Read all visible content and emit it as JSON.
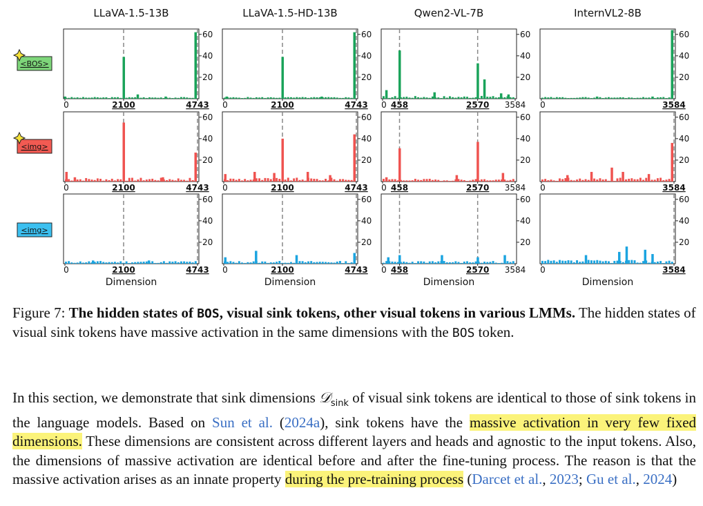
{
  "figure": {
    "models": [
      "LLaVA-1.5-13B",
      "LLaVA-1.5-HD-13B",
      "Qwen2-VL-7B",
      "InternVL2-8B"
    ],
    "row_labels": [
      {
        "text": "<BOS>",
        "color": "#7ed67a",
        "star": true
      },
      {
        "text": "<img>",
        "color": "#f25a52",
        "star": true
      },
      {
        "text": "<img>",
        "color": "#3cc0f0",
        "star": false
      }
    ],
    "xlabel": "Dimension",
    "y_ticks": [
      "20",
      "40",
      "60"
    ],
    "row_colors": [
      "#1aa35a",
      "#ef5350",
      "#1ba4e0"
    ]
  },
  "chart_data": {
    "type": "bar",
    "ylim": [
      0,
      65
    ],
    "models": [
      {
        "name": "LLaVA-1.5-13B",
        "xmax": 4743,
        "x_ticks": [
          {
            "v": 0,
            "label": "0",
            "bold": false
          },
          {
            "v": 2100,
            "label": "2100",
            "bold": true
          },
          {
            "v": 4743,
            "label": "4743",
            "bold": true
          }
        ],
        "sink_dims": [
          2100,
          4743
        ],
        "rows": [
          {
            "spikes": [
              [
                2100,
                39
              ],
              [
                4743,
                62
              ],
              [
                0,
                2
              ],
              [
                2600,
                4
              ],
              [
                3600,
                2
              ]
            ],
            "noise": 1,
            "seed": 3
          },
          {
            "spikes": [
              [
                2100,
                55
              ],
              [
                4743,
                27
              ],
              [
                50,
                9
              ],
              [
                350,
                4
              ],
              [
                3500,
                4
              ]
            ],
            "noise": 3,
            "seed": 7
          },
          {
            "spikes": [
              [
                1000,
                3
              ],
              [
                3000,
                3
              ]
            ],
            "noise": 2,
            "seed": 11
          }
        ]
      },
      {
        "name": "LLaVA-1.5-HD-13B",
        "xmax": 4743,
        "x_ticks": [
          {
            "v": 0,
            "label": "0",
            "bold": false
          },
          {
            "v": 2100,
            "label": "2100",
            "bold": true
          },
          {
            "v": 4743,
            "label": "4743",
            "bold": true
          }
        ],
        "sink_dims": [
          2100,
          4743
        ],
        "rows": [
          {
            "spikes": [
              [
                2100,
                39
              ],
              [
                4743,
                62
              ],
              [
                100,
                2
              ],
              [
                3500,
                2
              ]
            ],
            "noise": 1,
            "seed": 5
          },
          {
            "spikes": [
              [
                2100,
                40
              ],
              [
                4743,
                44
              ],
              [
                50,
                7
              ],
              [
                1100,
                9
              ],
              [
                1800,
                8
              ],
              [
                3000,
                9
              ],
              [
                3800,
                6
              ]
            ],
            "noise": 3,
            "seed": 9
          },
          {
            "spikes": [
              [
                50,
                6
              ],
              [
                1150,
                12
              ],
              [
                2600,
                8
              ],
              [
                4700,
                10
              ]
            ],
            "noise": 2,
            "seed": 13
          }
        ]
      },
      {
        "name": "Qwen2-VL-7B",
        "xmax": 3584,
        "x_ticks": [
          {
            "v": 0,
            "label": "0",
            "bold": false
          },
          {
            "v": 458,
            "label": "458",
            "bold": true
          },
          {
            "v": 2570,
            "label": "2570",
            "bold": true
          },
          {
            "v": 3584,
            "label": "3584",
            "bold": false
          }
        ],
        "sink_dims": [
          458,
          2570
        ],
        "rows": [
          {
            "spikes": [
              [
                458,
                45
              ],
              [
                2570,
                33
              ],
              [
                2750,
                18
              ],
              [
                100,
                8
              ],
              [
                1400,
                6
              ],
              [
                3200,
                5
              ],
              [
                3400,
                4
              ]
            ],
            "noise": 2,
            "seed": 17
          },
          {
            "spikes": [
              [
                458,
                31
              ],
              [
                2570,
                37
              ],
              [
                100,
                4
              ],
              [
                2000,
                6
              ],
              [
                3250,
                8
              ]
            ],
            "noise": 2,
            "seed": 19
          },
          {
            "spikes": [
              [
                458,
                8
              ],
              [
                1600,
                8
              ],
              [
                2570,
                6
              ],
              [
                3300,
                8
              ],
              [
                150,
                6
              ]
            ],
            "noise": 2,
            "seed": 23
          }
        ]
      },
      {
        "name": "InternVL2-8B",
        "xmax": 3584,
        "x_ticks": [
          {
            "v": 0,
            "label": "0",
            "bold": false
          },
          {
            "v": 3584,
            "label": "3584",
            "bold": true
          }
        ],
        "sink_dims": [
          3584
        ],
        "rows": [
          {
            "spikes": [
              [
                3584,
                64
              ],
              [
                1500,
                2
              ],
              [
                3000,
                2
              ]
            ],
            "noise": 1,
            "seed": 29
          },
          {
            "spikes": [
              [
                3584,
                36
              ],
              [
                1350,
                9
              ],
              [
                1900,
                13
              ],
              [
                2200,
                9
              ],
              [
                2900,
                7
              ],
              [
                700,
                6
              ]
            ],
            "noise": 3,
            "seed": 31
          },
          {
            "spikes": [
              [
                2300,
                16
              ],
              [
                2100,
                11
              ],
              [
                2800,
                13
              ],
              [
                1200,
                8
              ],
              [
                3000,
                9
              ]
            ],
            "noise": 3,
            "seed": 37
          }
        ]
      }
    ]
  },
  "caption": {
    "label": "Figure 7:",
    "bold_pre": "The hidden states of ",
    "bold_code": "BOS",
    "bold_post": ", visual sink tokens, other visual tokens in various LMMs.",
    "text_pre": "The hidden states of visual sink tokens have massive activation in the same dimensions with the ",
    "text_code": "BOS",
    "text_post": " token."
  },
  "paragraph": {
    "t1": "In this section, we demonstrate that sink dimensions ",
    "math": "𝒟",
    "math_sub": "sink",
    "t2": " of visual sink tokens are identical to those of sink tokens in the language models. Based on ",
    "cite1_name": "Sun et al.",
    "cite1_open": " (",
    "cite1_year": "2024a",
    "cite1_close": "), sink tokens have the ",
    "hl1": "massive activation in very few fixed dimensions.",
    "t3": " These dimensions are consistent across different layers and heads and agnostic to the input tokens.  Also, the dimensions of massive activation are identical before and after the fine-tuning process. The reason is that the massive activation arises as an innate property ",
    "hl2": "during the pre-training process",
    "t4": " (",
    "cite2_name": "Darcet et al.",
    "sep1": ", ",
    "cite2_year": "2023",
    "sep2": "; ",
    "cite3_name": "Gu et al.",
    "sep3": ", ",
    "cite3_year": "2024",
    "t5": ")"
  }
}
